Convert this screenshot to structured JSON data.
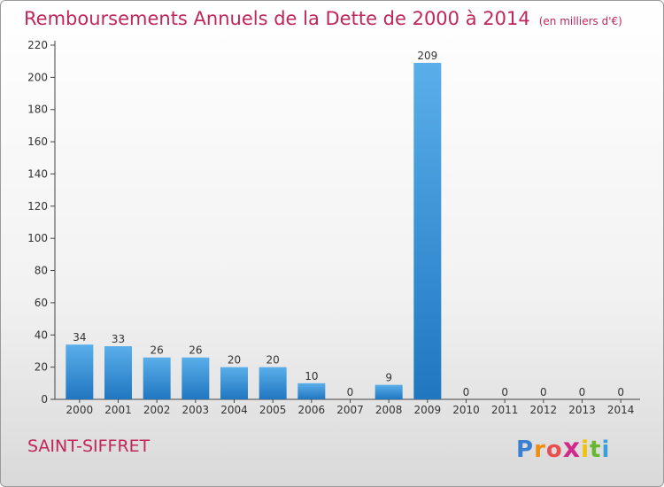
{
  "header": {
    "title": "Remboursements Annuels de la Dette de 2000 à 2014",
    "unit": "(en milliers d'€)"
  },
  "footer": {
    "commune": "SAINT-SIFFRET",
    "logo": "Proxiti"
  },
  "colors": {
    "title": "#c0265a",
    "bar_light": "#5aaeea",
    "bar_dark": "#2077c0",
    "axis": "#444444"
  },
  "chart_data": {
    "type": "bar",
    "title": "Remboursements Annuels de la Dette de 2000 à 2014",
    "subtitle": "(en milliers d'€)",
    "xlabel": "",
    "ylabel": "",
    "categories": [
      "2000",
      "2001",
      "2002",
      "2003",
      "2004",
      "2005",
      "2006",
      "2007",
      "2008",
      "2009",
      "2010",
      "2011",
      "2012",
      "2013",
      "2014"
    ],
    "values": [
      34,
      33,
      26,
      26,
      20,
      20,
      10,
      0,
      9,
      209,
      0,
      0,
      0,
      0,
      0
    ],
    "data_labels": [
      "34",
      "33",
      "26",
      "26",
      "20",
      "20",
      "10",
      "0",
      "9",
      "209",
      "0",
      "0",
      "0",
      "0",
      "0"
    ],
    "ylim": [
      0,
      220
    ],
    "yticks": [
      0,
      20,
      40,
      60,
      80,
      100,
      120,
      140,
      160,
      180,
      200,
      220
    ],
    "grid": false,
    "legend": "none"
  }
}
